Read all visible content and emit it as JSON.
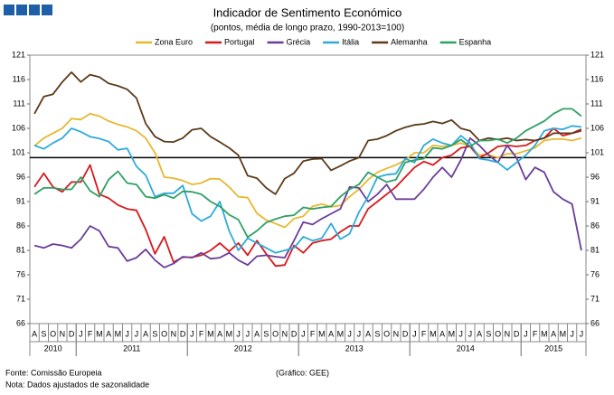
{
  "chart_data": {
    "type": "line",
    "title": "Indicador de Sentimento Económico",
    "subtitle": "(pontos, média de longo prazo, 1990-2013=100)",
    "categories": [
      "A",
      "S",
      "O",
      "N",
      "D",
      "J",
      "F",
      "M",
      "A",
      "M",
      "J",
      "J",
      "A",
      "S",
      "O",
      "N",
      "D",
      "J",
      "F",
      "M",
      "A",
      "M",
      "J",
      "J",
      "A",
      "S",
      "O",
      "N",
      "D",
      "J",
      "F",
      "M",
      "A",
      "M",
      "J",
      "J",
      "A",
      "S",
      "O",
      "N",
      "D",
      "J",
      "F",
      "M",
      "A",
      "M",
      "J",
      "J",
      "A",
      "S",
      "O",
      "N",
      "D",
      "J",
      "F",
      "M",
      "A",
      "M",
      "J",
      "J"
    ],
    "year_labels": [
      {
        "label": "2010",
        "start": 0,
        "end": 4
      },
      {
        "label": "2011",
        "start": 5,
        "end": 16
      },
      {
        "label": "2012",
        "start": 17,
        "end": 28
      },
      {
        "label": "2013",
        "start": 29,
        "end": 40
      },
      {
        "label": "2014",
        "start": 41,
        "end": 52
      },
      {
        "label": "2015",
        "start": 53,
        "end": 59
      }
    ],
    "series": [
      {
        "name": "Zona Euro",
        "color": "#e8b830",
        "values": [
          102.4,
          104,
          105,
          106,
          108,
          107.8,
          109,
          108.5,
          107.5,
          106.8,
          106.3,
          105.5,
          104,
          101,
          96,
          95.8,
          95.3,
          94.5,
          94.8,
          95.7,
          95.6,
          94,
          92,
          91.8,
          88.6,
          87.2,
          86.5,
          85.7,
          87.5,
          88,
          90,
          90.5,
          89.9,
          90.2,
          92,
          93.5,
          95.5,
          97,
          97.8,
          98.5,
          99.5,
          101,
          101,
          102.5,
          102.3,
          102.5,
          103,
          102.3,
          100.5,
          100.6,
          100,
          100.8,
          100.8,
          101.4,
          102,
          103.5,
          103.8,
          103.8,
          103.5,
          104
        ]
      },
      {
        "name": "Portugal",
        "color": "#d7191c",
        "values": [
          94,
          96.8,
          94,
          93,
          95,
          95,
          98.5,
          92.5,
          91.7,
          90.3,
          89.5,
          89.2,
          85.3,
          80.3,
          83.8,
          78.6,
          79.6,
          79.6,
          80,
          81,
          82.5,
          80.8,
          82.5,
          80,
          83,
          80.3,
          77.8,
          78,
          82,
          80.5,
          82.5,
          83,
          83.3,
          84.8,
          86,
          86,
          89.5,
          91,
          92.5,
          94,
          96,
          98,
          99.2,
          98.5,
          100,
          100.5,
          102,
          102.3,
          100,
          101,
          102.3,
          102.5,
          102.3,
          102.5,
          103.5,
          104,
          106,
          104.5,
          105,
          105.5
        ]
      },
      {
        "name": "Grécia",
        "color": "#6a3d9a",
        "values": [
          82,
          81.5,
          82.3,
          82,
          81.5,
          83.3,
          86,
          85,
          81.8,
          81.5,
          78.8,
          79.5,
          81.2,
          79,
          77.5,
          78.3,
          79.7,
          79.5,
          80.5,
          79.3,
          79.5,
          80.5,
          79,
          78,
          79.8,
          80,
          79.7,
          79.5,
          83,
          86.8,
          86.3,
          87.5,
          88.5,
          89.5,
          94,
          93.8,
          91,
          92.5,
          94.5,
          91.5,
          91.5,
          91.5,
          93.5,
          96,
          98,
          96,
          99.5,
          104,
          102.5,
          100.5,
          99,
          102.5,
          100,
          95.5,
          98,
          97,
          93,
          91.5,
          90.5,
          81
        ]
      },
      {
        "name": "Itália",
        "color": "#2eaadc",
        "values": [
          102.5,
          101.8,
          103,
          104,
          106,
          105.3,
          104.3,
          103.9,
          103.3,
          101.6,
          101.9,
          98.2,
          96.4,
          92,
          92.7,
          92.7,
          94.3,
          88.5,
          87,
          88,
          91,
          85,
          81,
          83.5,
          82.5,
          81.5,
          80.5,
          81,
          81.5,
          83.8,
          83,
          83.5,
          86.5,
          83.3,
          84.4,
          88.8,
          92,
          96,
          96.5,
          96.7,
          99.8,
          99,
          102.5,
          103.8,
          103,
          102.5,
          104.5,
          103,
          99.8,
          99.5,
          99,
          97.5,
          99,
          100.5,
          102.5,
          105.5,
          106,
          105.8,
          106.5,
          106.3
        ]
      },
      {
        "name": "Alemanha",
        "color": "#5c3a1a",
        "values": [
          109,
          112.5,
          113,
          115.5,
          117.5,
          115.5,
          117,
          116.5,
          115.2,
          114.7,
          114,
          112.2,
          107,
          104.3,
          103.3,
          103.2,
          104,
          105.7,
          106,
          104.3,
          103.2,
          102,
          100.5,
          96.3,
          95.8,
          93.8,
          92.5,
          95.7,
          96.8,
          99.3,
          99.7,
          99.8,
          97.4,
          98.3,
          99.3,
          100,
          103.5,
          103.8,
          104.5,
          105.5,
          106.2,
          106.7,
          106.9,
          107.4,
          107,
          107.7,
          106,
          105.5,
          103.5,
          104,
          103.7,
          104,
          103.5,
          103.7,
          103.5,
          104,
          105,
          105,
          105,
          105.8
        ]
      },
      {
        "name": "Espanha",
        "color": "#2ea064",
        "values": [
          92.5,
          93.8,
          93.8,
          93.5,
          93.5,
          96,
          93.2,
          92,
          95.5,
          97.2,
          94.8,
          94.5,
          92,
          91.7,
          92.4,
          91.7,
          93.1,
          93,
          92.5,
          91,
          90,
          88.3,
          87.3,
          83.7,
          85,
          86.7,
          87.4,
          88,
          88.2,
          89.8,
          89.5,
          89.8,
          90,
          92,
          93.5,
          94.5,
          97,
          96,
          95,
          95.5,
          99,
          99.5,
          99.8,
          102,
          101.8,
          102.5,
          103.7,
          102.3,
          103.5,
          103.5,
          103.8,
          103,
          104,
          105.5,
          106.5,
          107.5,
          109,
          110,
          110,
          108.5
        ]
      }
    ],
    "ylim": [
      66,
      121
    ],
    "yticks": [
      66,
      71,
      76,
      81,
      86,
      91,
      96,
      101,
      106,
      111,
      116,
      121
    ],
    "reference_line": 100,
    "grid": false,
    "legend": "top",
    "source": "Fonte: Comissão Europeia",
    "note": "Nota: Dados ajustados de sazonalidade",
    "credit": "(Gráfico: GEE)"
  }
}
